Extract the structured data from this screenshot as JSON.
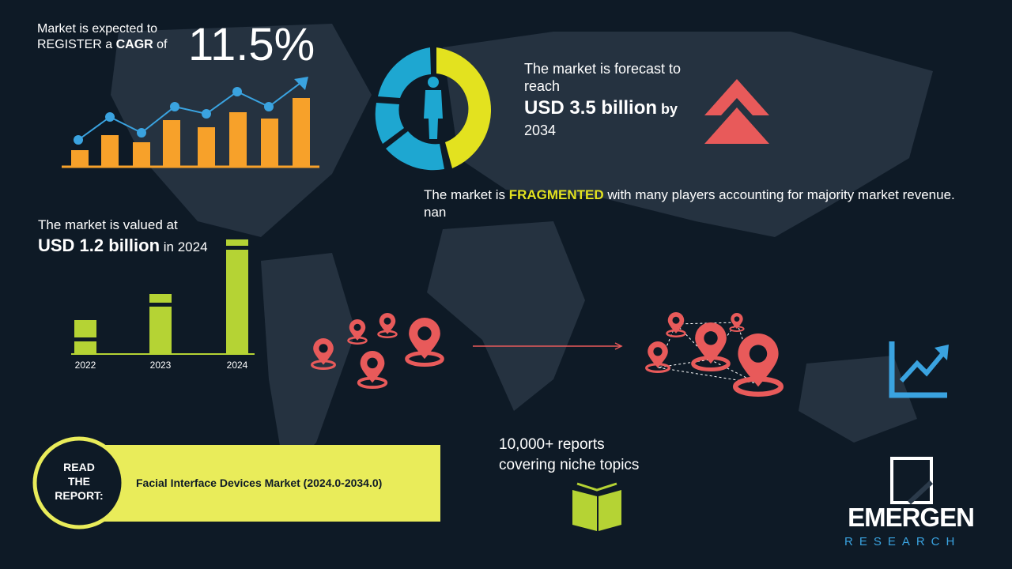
{
  "cagr": {
    "line1": "Market is expected to",
    "line2_prefix": "REGISTER a",
    "line2_bold": "CAGR",
    "line2_suffix": "of",
    "value": "11.5%"
  },
  "forecast": {
    "line1": "The market is forecast to",
    "line2": "reach",
    "amount": "USD 3.5 billion",
    "by": "by",
    "year": "2034"
  },
  "fragmented": {
    "prefix": "The market is",
    "highlight": "FRAGMENTED",
    "suffix": "with many players accounting for majority market revenue. nan"
  },
  "valuation": {
    "line1": "The market is valued at",
    "amount": "USD 1.2 billion",
    "in": "in 2024"
  },
  "years": [
    "2022",
    "2023",
    "2024"
  ],
  "reports": {
    "line1": "10,000+ reports",
    "line2": "covering niche topics"
  },
  "read_report": {
    "label_lines": [
      "READ",
      "THE",
      "REPORT:"
    ],
    "title": "Facial Interface Devices Market (2024.0-2034.0)"
  },
  "logo": {
    "name": "EMERGEN",
    "tagline": "RESEARCH"
  }
}
